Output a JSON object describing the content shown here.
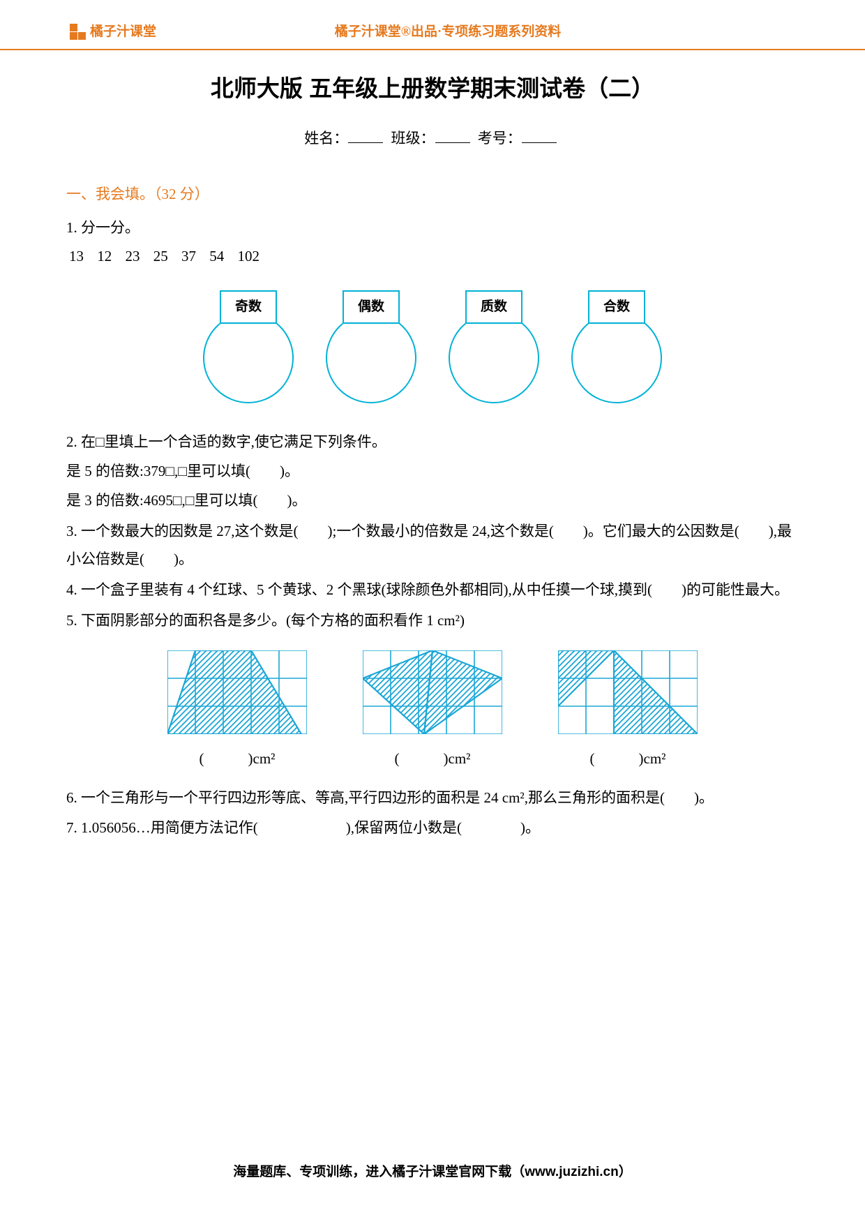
{
  "header": {
    "logo_text": "橘子汁课堂",
    "header_title": "橘子汁课堂®出品·专项练习题系列资料"
  },
  "title": "北师大版 五年级上册数学期末测试卷（二）",
  "info": {
    "name": "姓名：",
    "class": "班级：",
    "id": "考号："
  },
  "section1": {
    "heading": "一、我会填。（32 分）",
    "q1_label": "1. 分一分。",
    "q1_numbers": "13  12  23  25  37  54  102",
    "circle_labels": [
      "奇数",
      "偶数",
      "质数",
      "合数"
    ],
    "q2_a": "2. 在□里填上一个合适的数字,使它满足下列条件。",
    "q2_b": "是 5 的倍数:379□,□里可以填(　　)。",
    "q2_c": "是 3 的倍数:4695□,□里可以填(　　)。",
    "q3": "3. 一个数最大的因数是 27,这个数是(　　);一个数最小的倍数是 24,这个数是(　　)。它们最大的公因数是(　　),最小公倍数是(　　)。",
    "q4": "4. 一个盒子里装有 4 个红球、5 个黄球、2 个黑球(球除颜色外都相同),从中任摸一个球,摸到(　　)的可能性最大。",
    "q5": "5. 下面阴影部分的面积各是多少。(每个方格的面积看作 1 cm²)",
    "q5_cap": "(　　　)cm²",
    "q6": "6. 一个三角形与一个平行四边形等底、等高,平行四边形的面积是 24 cm²,那么三角形的面积是(　　)。",
    "q7": "7. 1.056056…用简便方法记作(　　　　　　),保留两位小数是(　　　　)。"
  },
  "diagram": {
    "stroke": "#1aa7d6",
    "fill": "#1aa7d6",
    "cell": 40,
    "cols": 5,
    "rows": 3,
    "bg": "#ffffff"
  },
  "footer": "海量题库、专项训练，进入橘子汁课堂官网下载（www.juzizhi.cn）"
}
